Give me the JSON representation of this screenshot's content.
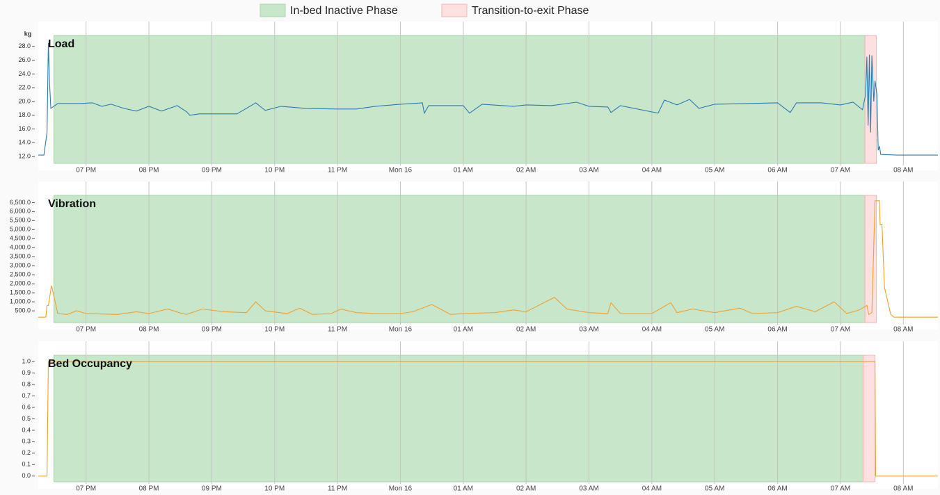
{
  "phases": [
    {
      "name": "In-bed Inactive Phase",
      "color": "#c8e6c9",
      "border": "#a5d6a7"
    },
    {
      "name": "Transition-to-exit Phase",
      "color": "#fde0e0",
      "border": "#f5b5b5"
    }
  ],
  "chart_data": [
    {
      "type": "line",
      "title": "Load",
      "ylabel": "kg",
      "color": "#2b7bb0",
      "phase_spans": [
        [
          18.49,
          31.39
        ],
        [
          31.39,
          31.57
        ]
      ],
      "xlim": [
        18.24,
        32.55
      ],
      "ylim": [
        11,
        29.6
      ],
      "xticks": [
        {
          "value": 19,
          "label": "07 PM"
        },
        {
          "value": 20,
          "label": "08 PM"
        },
        {
          "value": 21,
          "label": "09 PM"
        },
        {
          "value": 22,
          "label": "10 PM"
        },
        {
          "value": 23,
          "label": "11 PM"
        },
        {
          "value": 24,
          "label": "Mon 16"
        },
        {
          "value": 25,
          "label": "01 AM"
        },
        {
          "value": 26,
          "label": "02 AM"
        },
        {
          "value": 27,
          "label": "03 AM"
        },
        {
          "value": 28,
          "label": "04 AM"
        },
        {
          "value": 29,
          "label": "05 AM"
        },
        {
          "value": 30,
          "label": "06 AM"
        },
        {
          "value": 31,
          "label": "07 AM"
        },
        {
          "value": 32,
          "label": "08 AM"
        }
      ],
      "yticks": [
        {
          "value": 12,
          "label": "12.0"
        },
        {
          "value": 14,
          "label": "14.0"
        },
        {
          "value": 16,
          "label": "16.0"
        },
        {
          "value": 18,
          "label": "18.0"
        },
        {
          "value": 20,
          "label": "20.0"
        },
        {
          "value": 22,
          "label": "22.0"
        },
        {
          "value": 24,
          "label": "24.0"
        },
        {
          "value": 26,
          "label": "26.0"
        },
        {
          "value": 28,
          "label": "28.0"
        }
      ],
      "x": [
        18.24,
        18.33,
        18.38,
        18.4,
        18.42,
        18.44,
        18.55,
        18.9,
        19.1,
        19.25,
        19.4,
        19.6,
        19.8,
        20.0,
        20.2,
        20.45,
        20.6,
        20.65,
        20.8,
        21.0,
        21.4,
        21.7,
        21.85,
        22.1,
        22.5,
        23.0,
        23.3,
        23.6,
        24.0,
        24.35,
        24.38,
        24.45,
        25.0,
        25.1,
        25.3,
        25.8,
        26.0,
        26.4,
        26.8,
        27.0,
        27.3,
        27.35,
        27.5,
        28.1,
        28.2,
        28.4,
        28.6,
        28.75,
        29.0,
        29.5,
        30.0,
        30.2,
        30.3,
        30.7,
        31.0,
        31.2,
        31.35,
        31.4,
        31.42,
        31.44,
        31.46,
        31.48,
        31.5,
        31.53,
        31.55,
        31.58,
        31.6,
        31.62,
        31.64,
        31.9,
        32.55
      ],
      "values": [
        12.2,
        12.2,
        15.5,
        28.5,
        22.5,
        19.0,
        19.7,
        19.7,
        19.8,
        19.3,
        19.6,
        19.0,
        18.6,
        19.3,
        18.6,
        19.4,
        18.5,
        18.0,
        18.2,
        18.2,
        18.2,
        19.8,
        18.7,
        19.3,
        19.0,
        18.9,
        18.9,
        19.3,
        19.6,
        19.8,
        18.3,
        19.4,
        19.4,
        18.3,
        19.6,
        19.3,
        19.5,
        19.4,
        19.9,
        19.3,
        19.2,
        18.4,
        19.4,
        18.3,
        20.2,
        19.5,
        20.3,
        19.0,
        19.6,
        19.7,
        19.8,
        18.4,
        19.8,
        19.8,
        19.5,
        19.9,
        18.8,
        21.0,
        26.5,
        16.5,
        26.8,
        15.5,
        26.7,
        20.0,
        23.0,
        21.0,
        12.9,
        13.5,
        12.3,
        12.2,
        12.2
      ]
    },
    {
      "type": "line",
      "title": "Vibration",
      "color": "#f0a030",
      "phase_spans": [
        [
          18.49,
          31.39
        ],
        [
          31.39,
          31.57
        ]
      ],
      "xlim": [
        18.24,
        32.55
      ],
      "ylim": [
        -150,
        6900
      ],
      "xticks": [
        {
          "value": 19,
          "label": "07 PM"
        },
        {
          "value": 20,
          "label": "08 PM"
        },
        {
          "value": 21,
          "label": "09 PM"
        },
        {
          "value": 22,
          "label": "10 PM"
        },
        {
          "value": 23,
          "label": "11 PM"
        },
        {
          "value": 24,
          "label": "Mon 16"
        },
        {
          "value": 25,
          "label": "01 AM"
        },
        {
          "value": 26,
          "label": "02 AM"
        },
        {
          "value": 27,
          "label": "03 AM"
        },
        {
          "value": 28,
          "label": "04 AM"
        },
        {
          "value": 29,
          "label": "05 AM"
        },
        {
          "value": 30,
          "label": "06 AM"
        },
        {
          "value": 31,
          "label": "07 AM"
        },
        {
          "value": 32,
          "label": "08 AM"
        }
      ],
      "yticks": [
        {
          "value": 500,
          "label": "500.0"
        },
        {
          "value": 1000,
          "label": "1,000.0"
        },
        {
          "value": 1500,
          "label": "1,500.0"
        },
        {
          "value": 2000,
          "label": "2,000.0"
        },
        {
          "value": 2500,
          "label": "2,500.0"
        },
        {
          "value": 3000,
          "label": "3,000.0"
        },
        {
          "value": 3500,
          "label": "3,500.0"
        },
        {
          "value": 4000,
          "label": "4,000.0"
        },
        {
          "value": 4500,
          "label": "4,500.0"
        },
        {
          "value": 5000,
          "label": "5,000.0"
        },
        {
          "value": 5500,
          "label": "5,500.0"
        },
        {
          "value": 6000,
          "label": "6,000.0"
        },
        {
          "value": 6500,
          "label": "6,500.0"
        }
      ],
      "x": [
        18.24,
        18.36,
        18.38,
        18.4,
        18.45,
        18.55,
        18.7,
        18.85,
        19.0,
        19.5,
        19.8,
        20.0,
        20.3,
        20.5,
        20.6,
        20.85,
        21.2,
        21.55,
        21.7,
        21.85,
        22.2,
        22.4,
        22.6,
        22.9,
        23.05,
        23.3,
        23.6,
        24.0,
        24.2,
        24.5,
        24.8,
        25.0,
        25.5,
        25.8,
        26.0,
        26.45,
        26.65,
        27.0,
        27.3,
        27.35,
        27.5,
        28.0,
        28.3,
        28.4,
        28.65,
        29.0,
        29.4,
        29.6,
        30.0,
        30.3,
        30.6,
        30.9,
        31.1,
        31.3,
        31.42,
        31.45,
        31.5,
        31.55,
        31.62,
        31.63,
        31.66,
        31.7,
        31.8,
        31.85,
        32.55
      ],
      "values": [
        150,
        150,
        800,
        800,
        1900,
        350,
        300,
        500,
        350,
        300,
        450,
        350,
        600,
        380,
        300,
        600,
        450,
        400,
        1000,
        500,
        350,
        650,
        300,
        350,
        600,
        400,
        350,
        350,
        450,
        850,
        300,
        350,
        400,
        550,
        450,
        1250,
        600,
        400,
        350,
        950,
        350,
        350,
        950,
        400,
        600,
        400,
        650,
        350,
        400,
        750,
        450,
        1000,
        350,
        550,
        800,
        300,
        400,
        6600,
        6600,
        5300,
        5300,
        1800,
        300,
        150,
        150
      ]
    },
    {
      "type": "line",
      "title": "Bed Occupancy",
      "color": "#f0a030",
      "phase_spans": [
        [
          18.49,
          31.36
        ],
        [
          31.36,
          31.55
        ]
      ],
      "xlim": [
        18.24,
        32.55
      ],
      "ylim": [
        -0.05,
        1.055
      ],
      "xticks": [
        {
          "value": 19,
          "label": "07 PM"
        },
        {
          "value": 20,
          "label": "08 PM"
        },
        {
          "value": 21,
          "label": "09 PM"
        },
        {
          "value": 22,
          "label": "10 PM"
        },
        {
          "value": 23,
          "label": "11 PM"
        },
        {
          "value": 24,
          "label": "Mon 16"
        },
        {
          "value": 25,
          "label": "01 AM"
        },
        {
          "value": 26,
          "label": "02 AM"
        },
        {
          "value": 27,
          "label": "03 AM"
        },
        {
          "value": 28,
          "label": "04 AM"
        },
        {
          "value": 29,
          "label": "05 AM"
        },
        {
          "value": 30,
          "label": "06 AM"
        },
        {
          "value": 31,
          "label": "07 AM"
        },
        {
          "value": 32,
          "label": "08 AM"
        }
      ],
      "yticks": [
        {
          "value": 0,
          "label": "0.0"
        },
        0.1,
        0.2,
        0.3,
        0.4,
        0.5,
        0.6,
        0.7,
        0.8,
        0.9,
        {
          "value": 1,
          "label": "1.0"
        }
      ],
      "x": [
        18.24,
        18.38,
        18.4,
        31.55,
        31.56,
        32.55
      ],
      "values": [
        0,
        0,
        1,
        1,
        0,
        0
      ]
    }
  ]
}
